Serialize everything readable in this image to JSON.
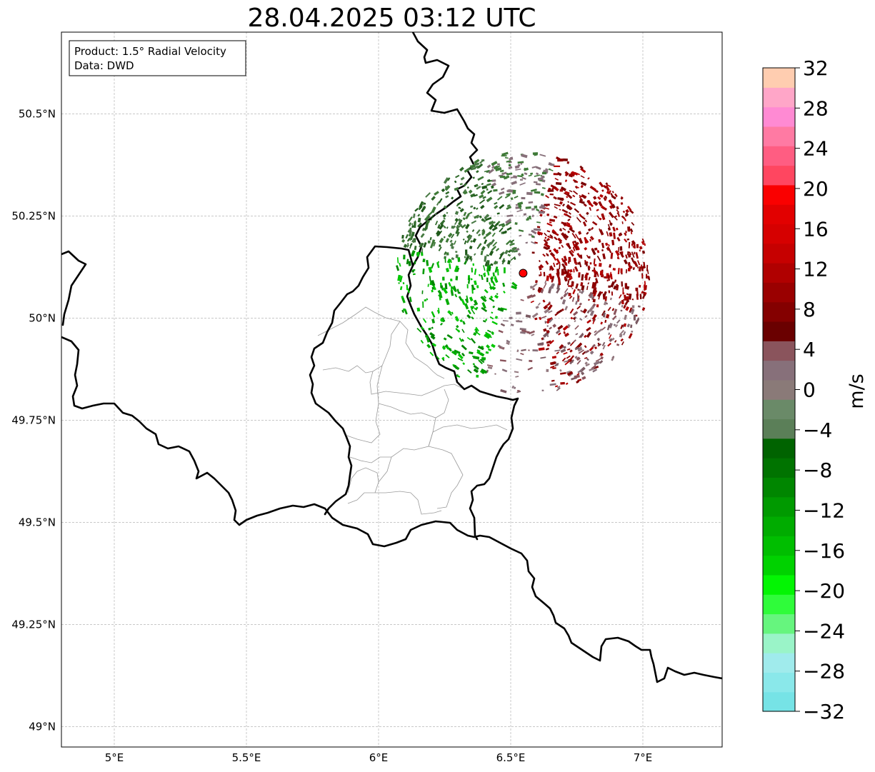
{
  "title": "28.04.2025 03:12 UTC",
  "info": {
    "product": "Product: 1.5° Radial Velocity",
    "data": "Data: DWD"
  },
  "map": {
    "lon_range": [
      4.8,
      7.3
    ],
    "lat_range": [
      48.95,
      50.7
    ],
    "grid": true,
    "lon_ticks": [
      {
        "value": 5.0,
        "label": "5°E"
      },
      {
        "value": 5.5,
        "label": "5.5°E"
      },
      {
        "value": 6.0,
        "label": "6°E"
      },
      {
        "value": 6.5,
        "label": "6.5°E"
      },
      {
        "value": 7.0,
        "label": "7°E"
      }
    ],
    "lat_ticks": [
      {
        "value": 50.5,
        "label": "50.5°N"
      },
      {
        "value": 50.25,
        "label": "50.25°N"
      },
      {
        "value": 50.0,
        "label": "50°N"
      },
      {
        "value": 49.75,
        "label": "49.75°N"
      },
      {
        "value": 49.5,
        "label": "49.5°N"
      },
      {
        "value": 49.25,
        "label": "49.25°N"
      },
      {
        "value": 49.0,
        "label": "49°N"
      }
    ],
    "radar_site": {
      "lon": 6.547,
      "lat": 50.11,
      "color": "#ff0000"
    }
  },
  "colorbar": {
    "label": "m/s",
    "min": -32,
    "max": 32,
    "tick_labels": [
      "32",
      "28",
      "24",
      "20",
      "16",
      "12",
      "8",
      "4",
      "0",
      "−4",
      "−8",
      "−12",
      "−16",
      "−20",
      "−24",
      "−28",
      "−32"
    ],
    "colors_bottom_to_top": [
      "#76e3e6",
      "#8ae8ea",
      "#a0ebec",
      "#9af4c8",
      "#66f57e",
      "#2ffc3a",
      "#03f503",
      "#00d200",
      "#00be00",
      "#00ac00",
      "#009a00",
      "#008600",
      "#007300",
      "#006300",
      "#5b7f58",
      "#6a8a68",
      "#8a7a78",
      "#87707a",
      "#8a545c",
      "#6a0000",
      "#840000",
      "#9a0000",
      "#b00000",
      "#c60000",
      "#d60000",
      "#e20000",
      "#fa0000",
      "#ff4660",
      "#ff5d82",
      "#ff7aa3",
      "#ff8ad3",
      "#ffa6c8",
      "#ffcdb0"
    ]
  }
}
